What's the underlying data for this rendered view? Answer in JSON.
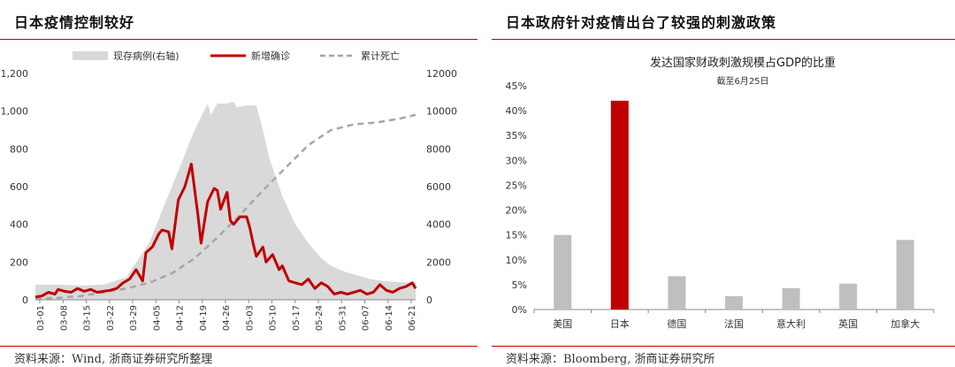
{
  "left_panel": {
    "title": "日本疫情控制较好",
    "source": "资料来源：Wind, 浙商证券研究所整理"
  },
  "right_panel": {
    "title": "日本政府针对疫情出台了较强的刺激政策",
    "source": "资料来源：Bloomberg, 浙商证券研究所"
  },
  "colors": {
    "accent_red": "#c00000",
    "area_gray": "#d9d9d9",
    "dashed_gray": "#a6a6a6",
    "bar_gray": "#bfbfbf"
  },
  "chart_data": [
    {
      "type": "line",
      "title": "",
      "x_ticks": [
        "03-01",
        "03-08",
        "03-15",
        "03-22",
        "03-29",
        "04-05",
        "04-12",
        "04-19",
        "04-26",
        "05-03",
        "05-10",
        "05-17",
        "05-24",
        "05-31",
        "06-07",
        "06-14",
        "06-21"
      ],
      "x_range_days": [
        1,
        118
      ],
      "ylim_left": [
        0,
        1200
      ],
      "yticks_left": [
        "0",
        "200",
        "400",
        "600",
        "800",
        "1,000",
        "1,200"
      ],
      "ylim_right": [
        0,
        12000
      ],
      "yticks_right": [
        "0",
        "2000",
        "4000",
        "6000",
        "8000",
        "10000",
        "12000"
      ],
      "legend_position": "top",
      "grid": false,
      "series": [
        {
          "name": "现存病例(右轴)",
          "kind": "area",
          "axis": "right",
          "points": [
            [
              1,
              800
            ],
            [
              8,
              800
            ],
            [
              15,
              750
            ],
            [
              22,
              800
            ],
            [
              29,
              1200
            ],
            [
              36,
              3000
            ],
            [
              43,
              6000
            ],
            [
              50,
              9000
            ],
            [
              54,
              10400
            ],
            [
              55,
              9800
            ],
            [
              57,
              10400
            ],
            [
              60,
              10400
            ],
            [
              62,
              10500
            ],
            [
              63,
              10200
            ],
            [
              66,
              10300
            ],
            [
              69,
              10300
            ],
            [
              71,
              9000
            ],
            [
              73,
              7500
            ],
            [
              77,
              5500
            ],
            [
              81,
              4000
            ],
            [
              85,
              3000
            ],
            [
              89,
              2200
            ],
            [
              92,
              1800
            ],
            [
              96,
              1500
            ],
            [
              100,
              1300
            ],
            [
              104,
              1100
            ],
            [
              108,
              1000
            ],
            [
              112,
              950
            ],
            [
              118,
              900
            ]
          ]
        },
        {
          "name": "新增确诊",
          "kind": "line",
          "axis": "left",
          "points": [
            [
              1,
              15
            ],
            [
              3,
              20
            ],
            [
              5,
              40
            ],
            [
              7,
              30
            ],
            [
              8,
              55
            ],
            [
              10,
              45
            ],
            [
              12,
              40
            ],
            [
              14,
              60
            ],
            [
              16,
              45
            ],
            [
              18,
              55
            ],
            [
              20,
              40
            ],
            [
              22,
              45
            ],
            [
              24,
              50
            ],
            [
              26,
              60
            ],
            [
              28,
              90
            ],
            [
              30,
              110
            ],
            [
              32,
              160
            ],
            [
              34,
              100
            ],
            [
              35,
              250
            ],
            [
              37,
              280
            ],
            [
              39,
              350
            ],
            [
              40,
              370
            ],
            [
              42,
              360
            ],
            [
              43,
              270
            ],
            [
              45,
              530
            ],
            [
              47,
              600
            ],
            [
              49,
              720
            ],
            [
              51,
              450
            ],
            [
              52,
              300
            ],
            [
              54,
              520
            ],
            [
              56,
              590
            ],
            [
              57,
              580
            ],
            [
              58,
              480
            ],
            [
              60,
              570
            ],
            [
              61,
              420
            ],
            [
              62,
              400
            ],
            [
              64,
              440
            ],
            [
              66,
              440
            ],
            [
              67,
              380
            ],
            [
              68,
              300
            ],
            [
              69,
              230
            ],
            [
              71,
              280
            ],
            [
              72,
              200
            ],
            [
              74,
              240
            ],
            [
              76,
              160
            ],
            [
              77,
              180
            ],
            [
              79,
              100
            ],
            [
              81,
              90
            ],
            [
              83,
              80
            ],
            [
              85,
              110
            ],
            [
              87,
              60
            ],
            [
              89,
              90
            ],
            [
              91,
              70
            ],
            [
              93,
              30
            ],
            [
              95,
              40
            ],
            [
              97,
              30
            ],
            [
              99,
              40
            ],
            [
              101,
              50
            ],
            [
              103,
              30
            ],
            [
              105,
              40
            ],
            [
              107,
              80
            ],
            [
              109,
              50
            ],
            [
              111,
              40
            ],
            [
              113,
              60
            ],
            [
              115,
              70
            ],
            [
              117,
              90
            ],
            [
              118,
              60
            ]
          ]
        },
        {
          "name": "累计死亡",
          "kind": "dashed",
          "axis": "right",
          "points": [
            [
              1,
              50
            ],
            [
              8,
              100
            ],
            [
              15,
              200
            ],
            [
              22,
              400
            ],
            [
              29,
              600
            ],
            [
              36,
              900
            ],
            [
              43,
              1400
            ],
            [
              50,
              2200
            ],
            [
              57,
              3300
            ],
            [
              64,
              4500
            ],
            [
              71,
              5800
            ],
            [
              78,
              7000
            ],
            [
              85,
              8200
            ],
            [
              92,
              9000
            ],
            [
              99,
              9300
            ],
            [
              106,
              9400
            ],
            [
              113,
              9600
            ],
            [
              118,
              9800
            ]
          ]
        }
      ]
    },
    {
      "type": "bar",
      "title": "发达国家财政刺激规模占GDP的比重",
      "subtitle": "截至6月25日",
      "categories": [
        "美国",
        "日本",
        "德国",
        "法国",
        "意大利",
        "英国",
        "加拿大"
      ],
      "values": [
        15.0,
        42.0,
        6.7,
        2.7,
        4.3,
        5.2,
        14.0
      ],
      "highlight_index": 1,
      "ylim": [
        0,
        45
      ],
      "yticks": [
        "0%",
        "5%",
        "10%",
        "15%",
        "20%",
        "25%",
        "30%",
        "35%",
        "40%",
        "45%"
      ],
      "grid": false
    }
  ]
}
